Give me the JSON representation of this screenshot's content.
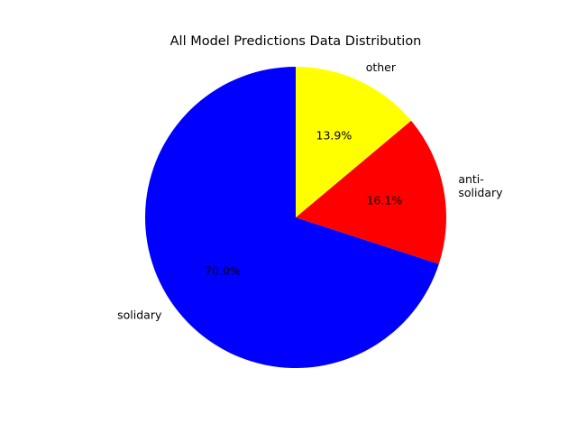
{
  "chart_data": {
    "type": "pie",
    "title": "All Model Predictions Data Distribution",
    "categories": [
      "solidary",
      "anti-\nsolidary",
      "other"
    ],
    "values": [
      70.0,
      16.1,
      13.9
    ],
    "value_labels": [
      "70.0%",
      "16.1%",
      "13.9%"
    ],
    "colors": [
      "#0000ff",
      "#ff0000",
      "#ffff00"
    ],
    "legend": "none",
    "start_angle_deg": 90,
    "direction": "counterclockwise"
  }
}
